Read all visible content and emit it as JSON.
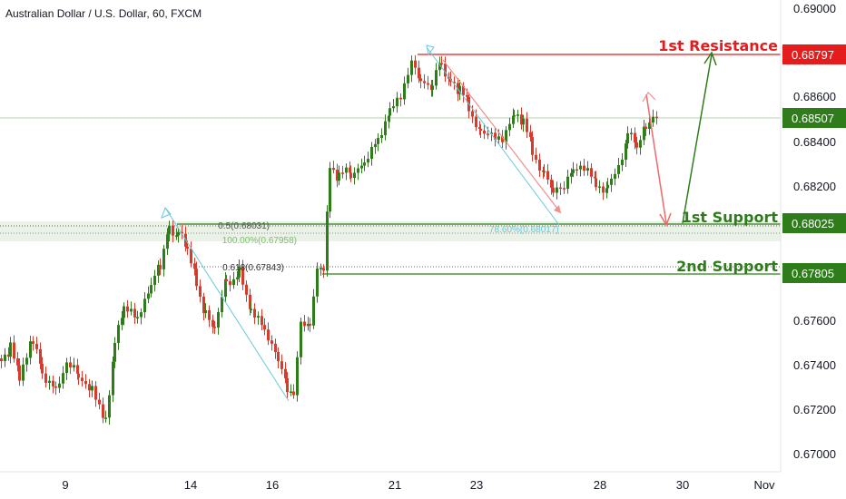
{
  "chart_data": {
    "type": "candlestick",
    "title": "Australian Dollar / U.S. Dollar, 60, FXCM",
    "y_range": [
      0.669,
      0.69
    ],
    "y_ticks": [
      "0.69000",
      "0.68600",
      "0.68400",
      "0.68200",
      "0.67600",
      "0.67400",
      "0.67200",
      "0.67000"
    ],
    "x_ticks": [
      "9",
      "14",
      "16",
      "21",
      "23",
      "28",
      "30",
      "Nov"
    ],
    "current_price": "0.68507",
    "levels": [
      {
        "name": "1st Resistance",
        "value": "0.68797",
        "color": "#e51c1c"
      },
      {
        "name": "1st Support",
        "value": "0.68025",
        "color": "#2e7d1a"
      },
      {
        "name": "2nd Support",
        "value": "0.67805",
        "color": "#2e7d1a"
      }
    ],
    "fib_labels": [
      {
        "text": "0.5(0.68031)"
      },
      {
        "text": "100.00%(0.67958)"
      },
      {
        "text": "0.618(0.67843)"
      },
      {
        "text": "78.60%(0.68017)"
      }
    ],
    "colors": {
      "up": "#2e7d1a",
      "down": "#d93a2b",
      "resistance": "#e51c1c",
      "support": "#2e7d1a",
      "projection_up": "#2e7d1a",
      "projection_down": "#ef6a6a",
      "fib_arrow": "#67c8e0",
      "current_badge": "#2e7d1a"
    }
  }
}
